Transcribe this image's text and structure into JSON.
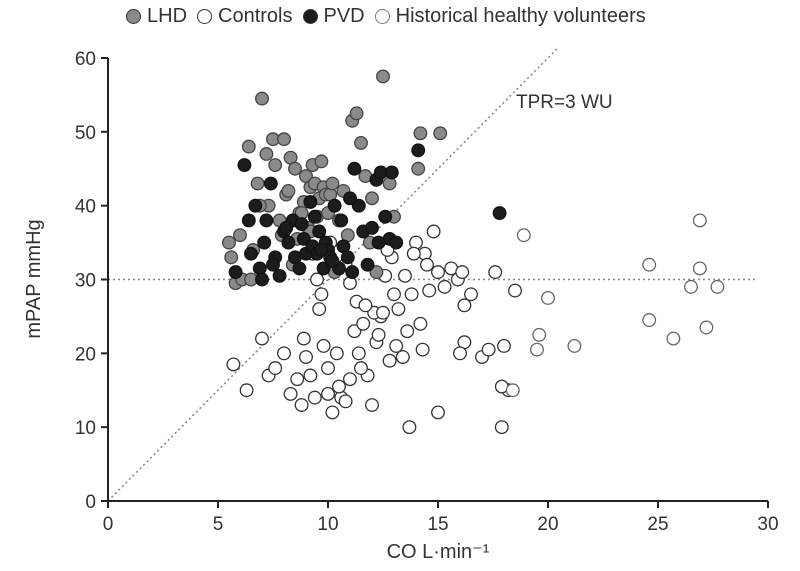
{
  "chart_data": {
    "type": "scatter",
    "xlabel": "CO L·min⁻¹",
    "ylabel": "mPAP mmHg",
    "xlim": [
      0,
      30
    ],
    "ylim": [
      0,
      60
    ],
    "xticks": [
      "0",
      "5",
      "10",
      "15",
      "20",
      "25",
      "30"
    ],
    "yticks": [
      "0",
      "10",
      "20",
      "30",
      "40",
      "50",
      "60"
    ],
    "grid": false,
    "legend_position": "top",
    "colors": {
      "LHD": "#8a8a8a",
      "PVD": "#1c1c1c",
      "outline": "#333333",
      "reference": "#888888"
    },
    "annotations": [
      {
        "text": "TPR=3 WU"
      }
    ],
    "reference_lines": [
      {
        "kind": "horizontal",
        "y": 30
      },
      {
        "kind": "slope",
        "slope": 3,
        "x_range": [
          0,
          20.5
        ]
      }
    ],
    "series": [
      {
        "name": "LHD",
        "marker": "filled-gray",
        "x": [
          5.5,
          5.6,
          5.8,
          6.0,
          6.1,
          6.4,
          6.5,
          6.8,
          7.0,
          7.2,
          7.3,
          7.5,
          7.6,
          7.8,
          8.0,
          8.1,
          8.2,
          8.3,
          8.5,
          8.6,
          8.7,
          8.9,
          9.0,
          9.1,
          9.2,
          9.3,
          9.4,
          9.5,
          9.6,
          9.7,
          9.8,
          9.9,
          10.0,
          10.1,
          10.2,
          10.3,
          10.5,
          10.7,
          10.9,
          11.1,
          11.3,
          11.5,
          11.7,
          12.0,
          12.2,
          12.5,
          12.8,
          13.0,
          14.1,
          14.2,
          15.1,
          6.6,
          7.9,
          8.4,
          9.2,
          11.9,
          6.9,
          8.8
        ],
        "y": [
          35.0,
          33.0,
          29.5,
          36.0,
          30.0,
          48.0,
          30.0,
          43.0,
          54.5,
          47.0,
          40.0,
          49.0,
          45.5,
          38.0,
          49.0,
          41.5,
          42.0,
          46.5,
          45.0,
          35.5,
          39.0,
          40.5,
          44.0,
          37.0,
          42.5,
          45.5,
          43.0,
          38.5,
          41.0,
          46.0,
          42.5,
          41.5,
          39.0,
          41.5,
          43.0,
          31.0,
          38.0,
          42.0,
          36.0,
          51.5,
          52.5,
          48.5,
          44.0,
          41.0,
          31.0,
          57.5,
          43.0,
          38.5,
          45.0,
          49.8,
          49.8,
          34.0,
          36.0,
          32.0,
          36.5,
          35.0,
          40.0,
          39.0
        ]
      },
      {
        "name": "Controls",
        "marker": "open-circle",
        "x": [
          5.7,
          6.3,
          7.0,
          7.3,
          7.6,
          8.0,
          8.3,
          8.6,
          8.8,
          9.0,
          9.2,
          9.4,
          9.6,
          9.8,
          10.0,
          10.2,
          10.4,
          10.6,
          10.8,
          11.0,
          11.2,
          11.4,
          11.6,
          11.8,
          12.0,
          12.2,
          12.4,
          12.6,
          12.8,
          13.0,
          13.2,
          13.4,
          13.6,
          13.8,
          14.0,
          14.2,
          14.4,
          14.6,
          14.8,
          15.0,
          15.3,
          15.6,
          15.9,
          16.2,
          16.5,
          17.0,
          17.3,
          17.6,
          17.9,
          18.2,
          18.5,
          9.5,
          10.1,
          10.8,
          11.3,
          12.1,
          12.9,
          13.7,
          14.3,
          15.0,
          8.9,
          9.7,
          10.5,
          11.7,
          12.7,
          13.5,
          14.5,
          16.0,
          18.0,
          11.5,
          12.3,
          13.1,
          16.2,
          17.9,
          9.3,
          10.0,
          11.0,
          12.5,
          13.9,
          16.1
        ],
        "y": [
          18.5,
          15.0,
          22.0,
          17.0,
          18.0,
          20.0,
          14.5,
          16.5,
          13.0,
          19.5,
          17.0,
          14.0,
          26.0,
          21.0,
          14.5,
          12.0,
          20.0,
          14.0,
          13.5,
          16.5,
          23.0,
          20.0,
          24.0,
          17.0,
          13.0,
          21.5,
          25.0,
          30.5,
          19.0,
          28.0,
          26.0,
          19.5,
          23.0,
          28.0,
          35.0,
          24.0,
          33.5,
          28.5,
          36.5,
          31.0,
          29.0,
          31.5,
          30.0,
          21.5,
          28.0,
          19.5,
          20.5,
          31.0,
          10.0,
          15.0,
          28.5,
          30.0,
          35.0,
          32.0,
          27.0,
          25.5,
          33.0,
          10.0,
          20.5,
          12.0,
          22.0,
          28.0,
          15.5,
          26.5,
          34.0,
          30.5,
          32.0,
          20.0,
          21.0,
          18.0,
          22.5,
          21.0,
          26.5,
          15.5,
          33.5,
          18.0,
          29.5,
          25.5,
          33.5,
          31.0
        ]
      },
      {
        "name": "PVD",
        "marker": "filled-black",
        "x": [
          5.8,
          6.2,
          6.5,
          6.7,
          6.9,
          7.1,
          7.2,
          7.4,
          7.6,
          7.8,
          8.0,
          8.2,
          8.4,
          8.5,
          8.7,
          8.9,
          9.0,
          9.2,
          9.3,
          9.5,
          9.6,
          9.8,
          9.9,
          10.0,
          10.1,
          10.3,
          10.5,
          10.7,
          10.9,
          11.1,
          11.2,
          11.4,
          11.6,
          11.8,
          12.0,
          12.2,
          12.4,
          12.6,
          12.8,
          13.1,
          17.8,
          6.4,
          7.5,
          8.8,
          9.4,
          10.2,
          11.0,
          12.3,
          7.0,
          8.1,
          9.7,
          10.6,
          12.9,
          14.1
        ],
        "y": [
          31.0,
          45.5,
          33.5,
          40.0,
          31.5,
          35.0,
          38.0,
          43.0,
          33.0,
          30.5,
          36.5,
          35.0,
          38.0,
          33.0,
          31.5,
          35.5,
          33.5,
          40.5,
          34.5,
          33.5,
          36.5,
          31.5,
          35.0,
          34.0,
          33.0,
          40.0,
          31.5,
          34.5,
          33.0,
          31.0,
          45.0,
          40.0,
          36.5,
          32.0,
          37.0,
          43.5,
          44.5,
          38.5,
          35.5,
          35.0,
          39.0,
          38.0,
          32.0,
          37.5,
          38.5,
          32.5,
          41.0,
          35.0,
          30.0,
          37.0,
          34.0,
          38.0,
          44.5,
          47.5
        ]
      },
      {
        "name": "Historical healthy volunteers",
        "marker": "open-gray-circle",
        "x": [
          18.9,
          19.6,
          20.0,
          21.2,
          24.6,
          24.6,
          25.7,
          26.5,
          26.9,
          26.9,
          27.2,
          27.7,
          19.5,
          18.4
        ],
        "y": [
          36.0,
          22.5,
          27.5,
          21.0,
          32.0,
          24.5,
          22.0,
          29.0,
          38.0,
          31.5,
          23.5,
          29.0,
          20.5,
          15.0
        ]
      }
    ]
  }
}
